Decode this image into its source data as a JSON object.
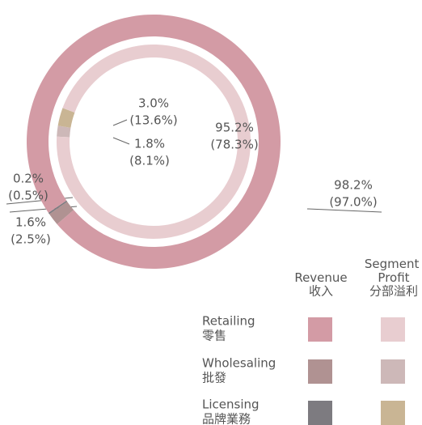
{
  "chart_data": {
    "type": "pie",
    "categories": [
      "Retailing",
      "Wholesaling",
      "Licensing"
    ],
    "categories_zh": [
      "零售",
      "批發",
      "品牌業務"
    ],
    "series": [
      {
        "name": "Revenue",
        "name_zh": "收入",
        "colors": [
          "#d39ba5",
          "#b09292",
          "#7d7b80"
        ],
        "values": [
          98.2,
          1.6,
          0.2
        ],
        "value_labels": [
          "98.2%",
          "1.6%",
          "0.2%"
        ],
        "prior_values": [
          97.0,
          2.5,
          0.5
        ],
        "prior_value_labels": [
          "(97.0%)",
          "(2.5%)",
          "(0.5%)"
        ]
      },
      {
        "name": "Segment Profit",
        "name_zh": "分部溢利",
        "colors": [
          "#e8cdd0",
          "#cdb8b8",
          "#c9b594"
        ],
        "values": [
          95.2,
          1.8,
          3.0
        ],
        "value_labels": [
          "95.2%",
          "1.8%",
          "3.0%"
        ],
        "prior_values": [
          78.3,
          8.1,
          13.6
        ],
        "prior_value_labels": [
          "(78.3%)",
          "(8.1%)",
          "(13.6%)"
        ]
      }
    ]
  }
}
